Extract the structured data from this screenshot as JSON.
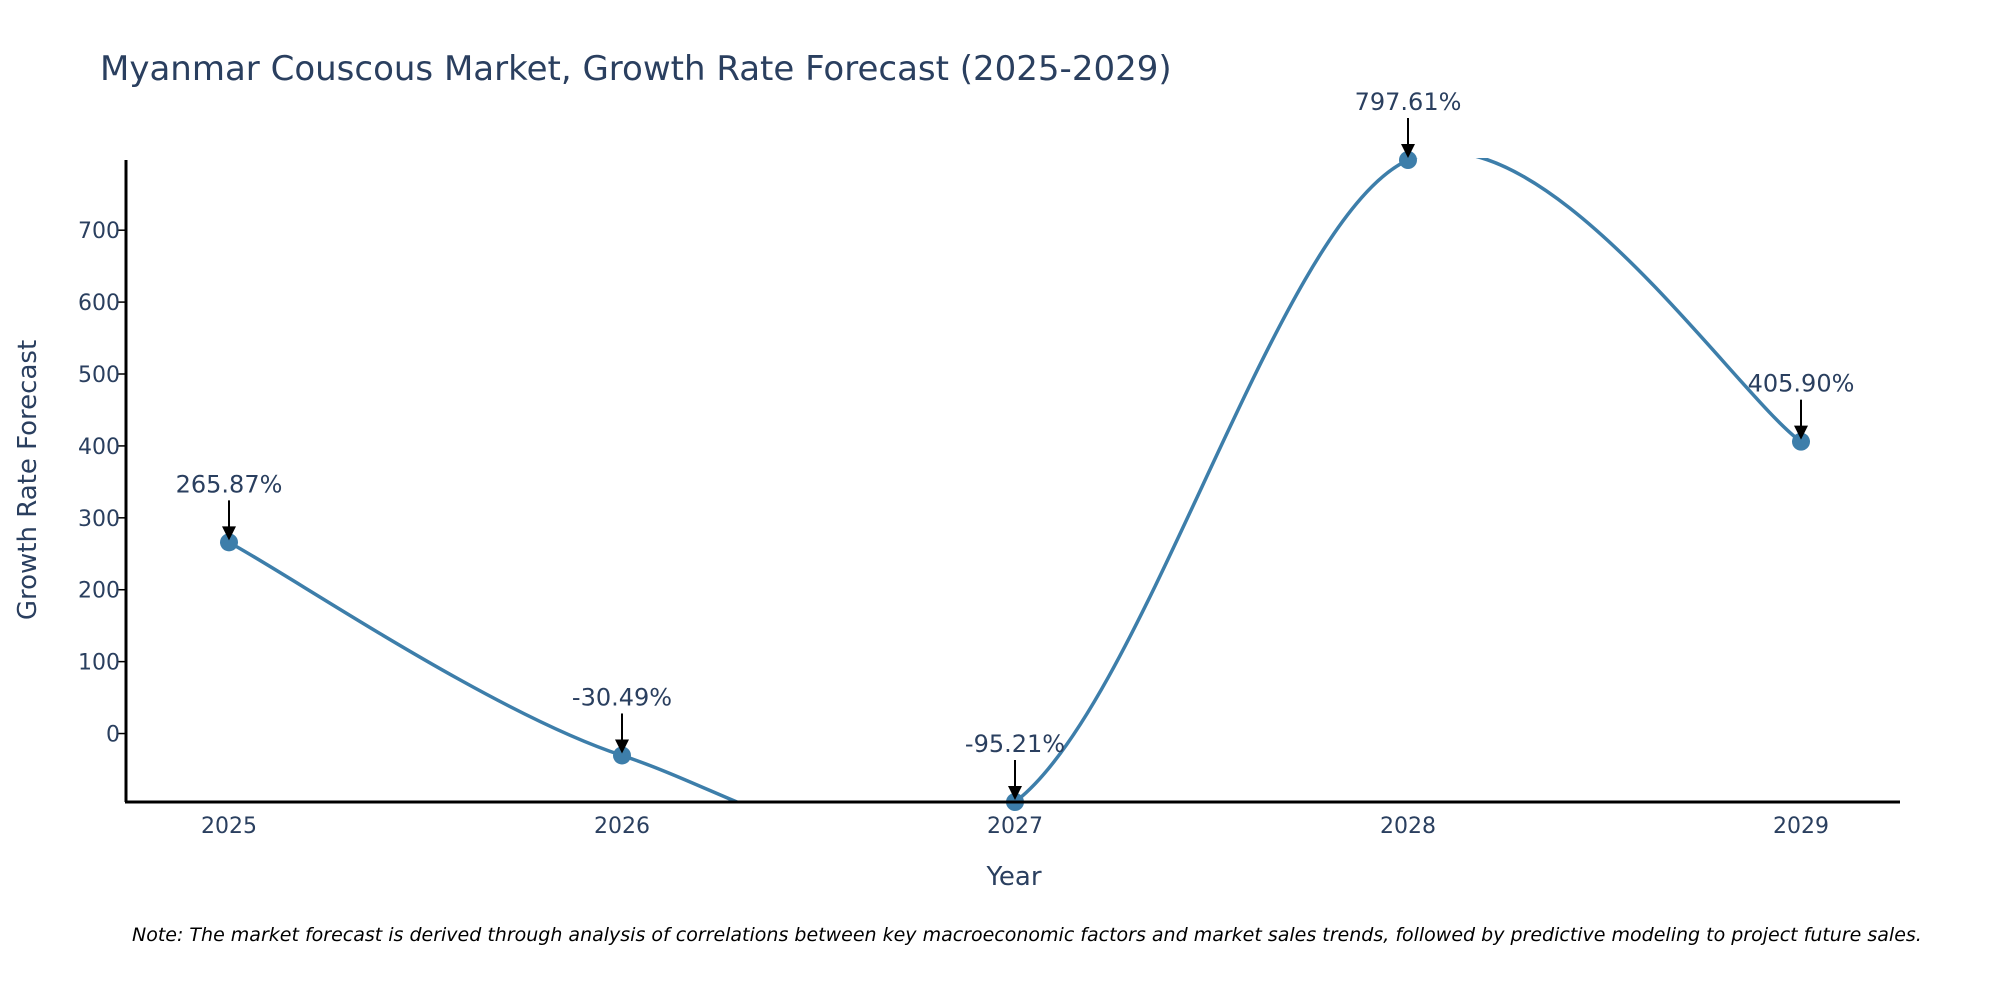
{
  "chart_data": {
    "type": "line",
    "title": "Myanmar Couscous Market, Growth Rate Forecast (2025-2029)",
    "xlabel": "Year",
    "ylabel": "Growth Rate Forecast",
    "categories": [
      "2025",
      "2026",
      "2027",
      "2028",
      "2029"
    ],
    "values": [
      265.87,
      -30.49,
      -95.21,
      797.61,
      405.9
    ],
    "data_labels": [
      "265.87%",
      "-30.49%",
      "-95.21%",
      "797.61%",
      "405.90%"
    ],
    "y_ticks": [
      0,
      100,
      200,
      300,
      400,
      500,
      600,
      700
    ],
    "ylim": [
      -95.21,
      797.61
    ],
    "grid": false,
    "line_shape": "spline",
    "series_color": "#3d7eaa",
    "axis_color": "#000000",
    "text_color": "#2a3f5f"
  },
  "note": "Note: The market forecast is derived through analysis of correlations between key macroeconomic factors and market sales trends, followed by predictive modeling to project future sales."
}
